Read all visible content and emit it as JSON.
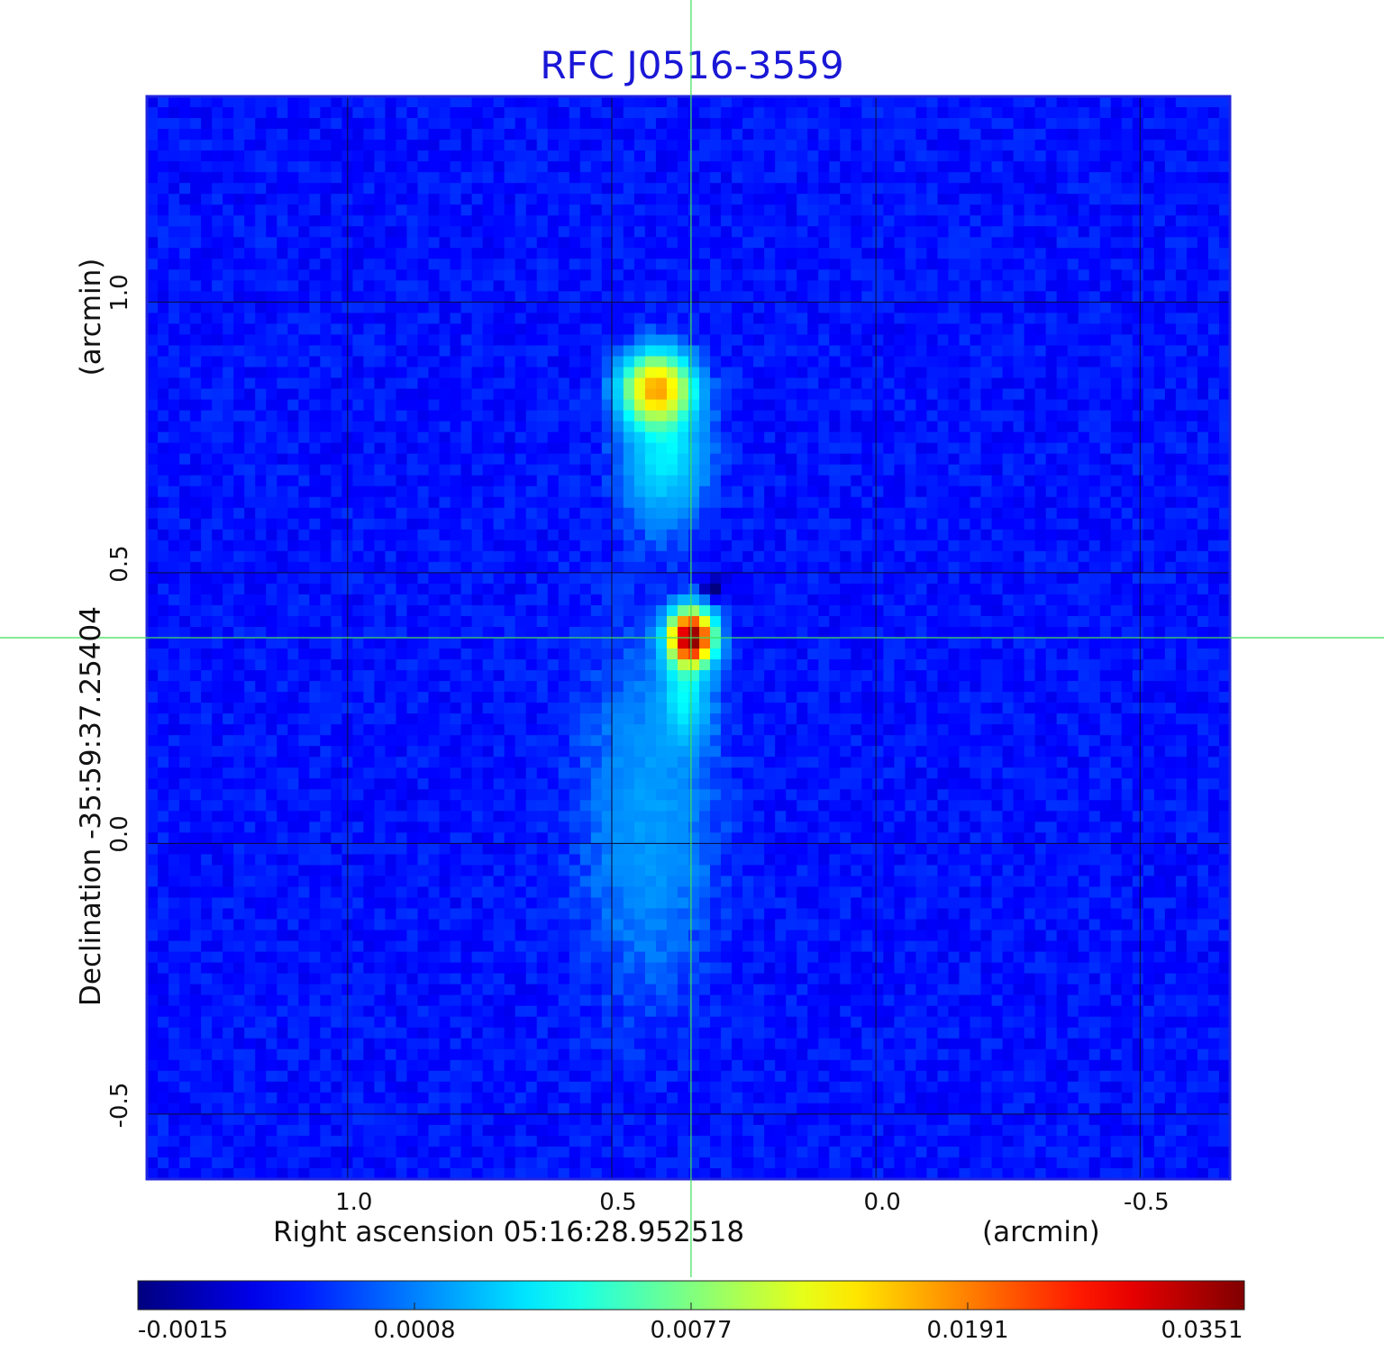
{
  "chart_data": {
    "type": "heatmap",
    "title": "RFC J0516-3559",
    "xlabel": "Right ascension  05:16:28.952518",
    "xunit": "(arcmin)",
    "ylabel": "Declination  -35:59:37.25404",
    "yunit": "(arcmin)",
    "x_ticks": [
      1.0,
      0.5,
      0.0,
      -0.5
    ],
    "x_tick_labels": [
      "1.0",
      "0.5",
      "0.0",
      "-0.5"
    ],
    "y_ticks": [
      1.0,
      0.5,
      0.0,
      -0.5
    ],
    "y_tick_labels": [
      "1.0",
      "0.5",
      "0.0",
      "-0.5"
    ],
    "xlim": [
      1.38,
      -0.67
    ],
    "ylim": [
      -0.62,
      1.38
    ],
    "grid": true,
    "crosshair": {
      "x": 0.35,
      "y": 0.38
    },
    "colorbar": {
      "colormap": "jet",
      "tick_labels": [
        "-0.0015",
        "0.0008",
        "0.0077",
        "0.0191",
        "0.0351"
      ],
      "min": -0.0015,
      "max": 0.0351
    },
    "components": [
      {
        "x": 0.35,
        "y": 0.38,
        "peak": 0.0351,
        "sx": 0.025,
        "sy": 0.03
      },
      {
        "x": 0.415,
        "y": 0.84,
        "peak": 0.017,
        "sx": 0.04,
        "sy": 0.04
      },
      {
        "x": 0.36,
        "y": 0.28,
        "peak": 0.004,
        "sx": 0.03,
        "sy": 0.06
      },
      {
        "x": 0.4,
        "y": 0.72,
        "peak": 0.004,
        "sx": 0.05,
        "sy": 0.08
      },
      {
        "x": 0.43,
        "y": 0.05,
        "peak": 0.0018,
        "sx": 0.08,
        "sy": 0.2
      }
    ],
    "negative_features": [
      {
        "x": 0.31,
        "y": 0.47,
        "value": -0.0015
      }
    ]
  }
}
